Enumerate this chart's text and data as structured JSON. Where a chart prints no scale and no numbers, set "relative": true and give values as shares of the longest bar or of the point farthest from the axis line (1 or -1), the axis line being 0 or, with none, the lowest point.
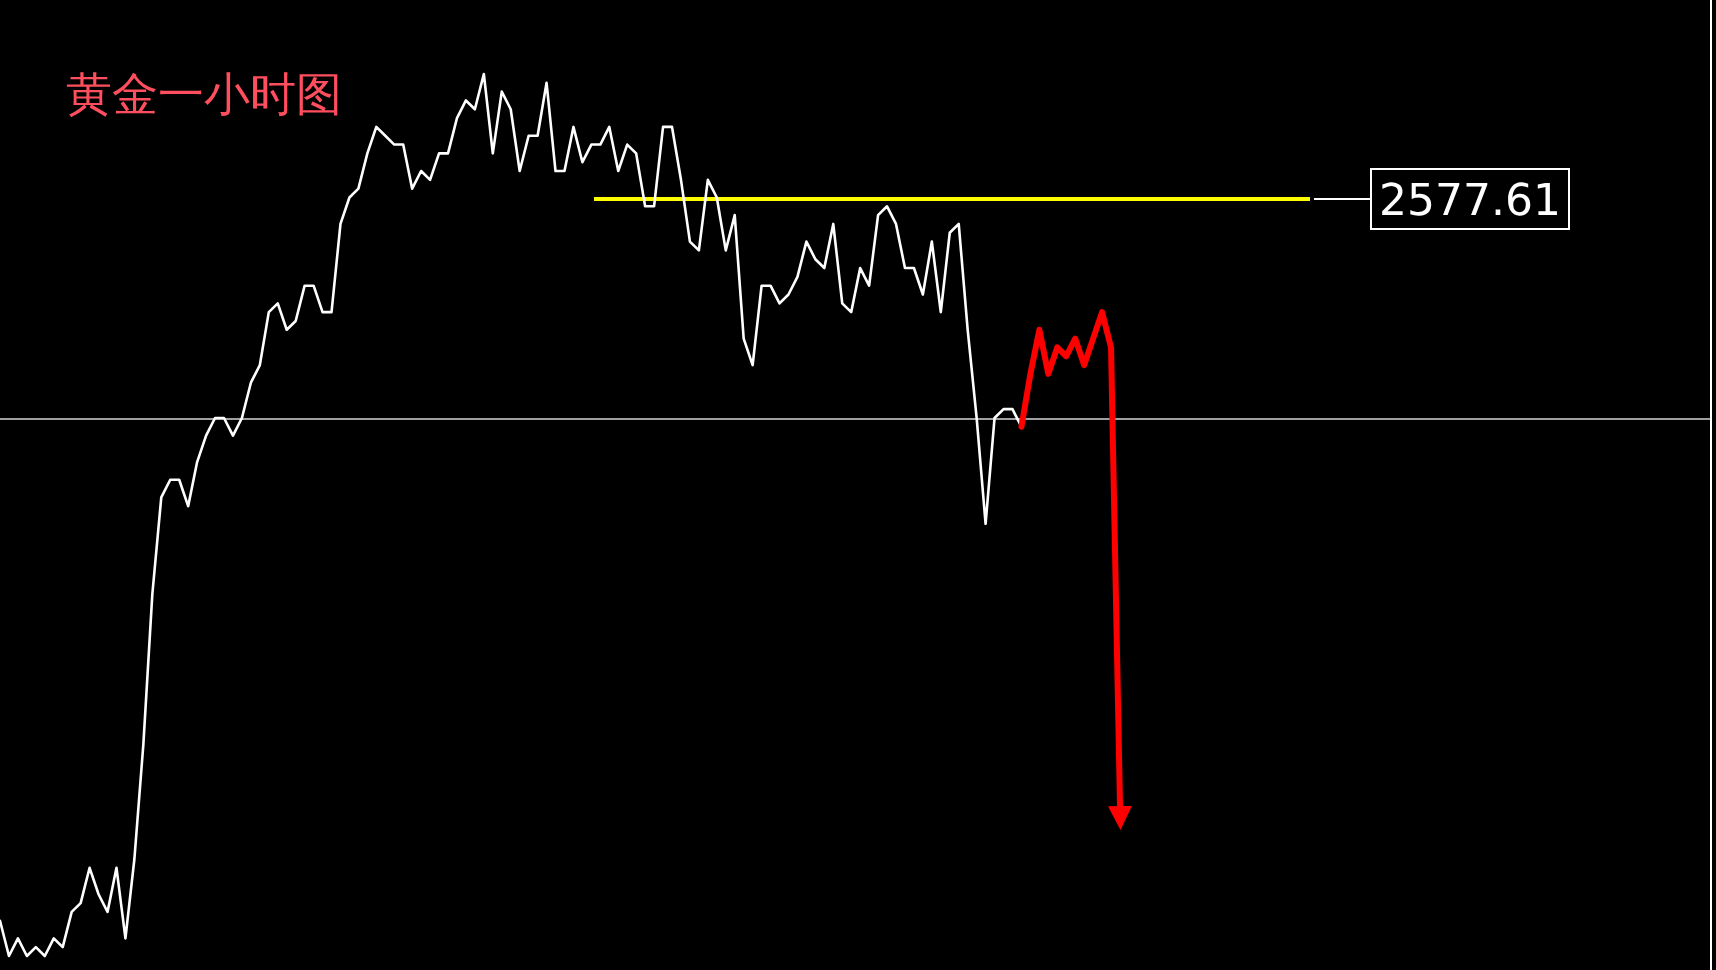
{
  "chart_data": {
    "type": "line",
    "title": "黄金一小时图",
    "relative": true,
    "categories": [
      null,
      null,
      null,
      null,
      null,
      null,
      null,
      null,
      null,
      null,
      null,
      null,
      null,
      null,
      null,
      null,
      null,
      null,
      null,
      null,
      null,
      null,
      null,
      null,
      null,
      null,
      null,
      null,
      null,
      null,
      null,
      null,
      null,
      null,
      null,
      null,
      null,
      null,
      null,
      null,
      null,
      null,
      null,
      null,
      null,
      null,
      null,
      null,
      null,
      null,
      null,
      null,
      null,
      null,
      null,
      null,
      null,
      null,
      null,
      null,
      null,
      null,
      null,
      null,
      null,
      null,
      null,
      null,
      null,
      null,
      null,
      null,
      null,
      null,
      null,
      null,
      null,
      null,
      null,
      null,
      null,
      null,
      null,
      null,
      null,
      null,
      null,
      null,
      null,
      null,
      null,
      null,
      null,
      null,
      null,
      null,
      null,
      null,
      null,
      null,
      null,
      null,
      null,
      null,
      null,
      null,
      null,
      null,
      null,
      null,
      null,
      null,
      null,
      null,
      null,
      null,
      null,
      null,
      null,
      null,
      null,
      null,
      null,
      null,
      null,
      null
    ],
    "series": [
      {
        "color": "#ffffff",
        "values": [
          0.04,
          0.0,
          0.02,
          0,
          0.01,
          0.0,
          0.02,
          0.01,
          0.05,
          0.06,
          0.1,
          0.07,
          0.05,
          0.1,
          0.02,
          0.11,
          0.24,
          0.41,
          0.52,
          0.54,
          0.54,
          0.51,
          0.56,
          0.59,
          0.61,
          0.61,
          0.59,
          0.61,
          0.65,
          0.67,
          0.73,
          0.74,
          0.71,
          0.72,
          0.76,
          0.76,
          0.73,
          0.73,
          0.83,
          0.86,
          0.87,
          0.91,
          0.94,
          0.93,
          0.92,
          0.92,
          0.87,
          0.89,
          0.88,
          0.91,
          0.91,
          0.95,
          0.97,
          0.96,
          1,
          0.91,
          0.98,
          0.96,
          0.89,
          0.93,
          0.93,
          0.99,
          0.89,
          0.89,
          0.94,
          0.9,
          0.92,
          0.92,
          0.94,
          0.89,
          0.92,
          0.91,
          0.85,
          0.85,
          0.94,
          0.94,
          0.88,
          0.81,
          0.8,
          0.88,
          0.86,
          0.8,
          0.84,
          0.7,
          0.67,
          0.76,
          0.76,
          0.74,
          0.75,
          0.77,
          0.81,
          0.79,
          0.78,
          0.83,
          0.74,
          0.73,
          0.78,
          0.76,
          0.84,
          0.85,
          0.83,
          0.78,
          0.78,
          0.75,
          0.81,
          0.73,
          0.82,
          0.83,
          0.71,
          0.61,
          0.49,
          0.61,
          0.62,
          0.62,
          0.6,
          null,
          null,
          null,
          null,
          null,
          null,
          null,
          null,
          null,
          null,
          null
        ]
      },
      {
        "color": "#ff0000",
        "values": [
          null,
          null,
          null,
          null,
          null,
          null,
          null,
          null,
          null,
          null,
          null,
          null,
          null,
          null,
          null,
          null,
          null,
          null,
          null,
          null,
          null,
          null,
          null,
          null,
          null,
          null,
          null,
          null,
          null,
          null,
          null,
          null,
          null,
          null,
          null,
          null,
          null,
          null,
          null,
          null,
          null,
          null,
          null,
          null,
          null,
          null,
          null,
          null,
          null,
          null,
          null,
          null,
          null,
          null,
          null,
          null,
          null,
          null,
          null,
          null,
          null,
          null,
          null,
          null,
          null,
          null,
          null,
          null,
          null,
          null,
          null,
          null,
          null,
          null,
          null,
          null,
          null,
          null,
          null,
          null,
          null,
          null,
          null,
          null,
          null,
          null,
          null,
          null,
          null,
          null,
          null,
          null,
          null,
          null,
          null,
          null,
          null,
          null,
          null,
          null,
          null,
          null,
          null,
          null,
          null,
          null,
          null,
          null,
          null,
          null,
          null,
          null,
          null,
          null,
          0.6,
          0.66,
          0.71,
          0.66,
          0.69,
          0.68,
          0.7,
          0.67,
          0.7,
          0.73,
          0.69,
          0.17
        ]
      }
    ],
    "ref_lines": [
      {
        "axis": "y",
        "value": 0.86,
        "color": "#ffff00"
      },
      {
        "axis": "y",
        "value": 0.61,
        "color": "#a0a0a0"
      }
    ],
    "annotations": [
      "2577.61"
    ]
  }
}
